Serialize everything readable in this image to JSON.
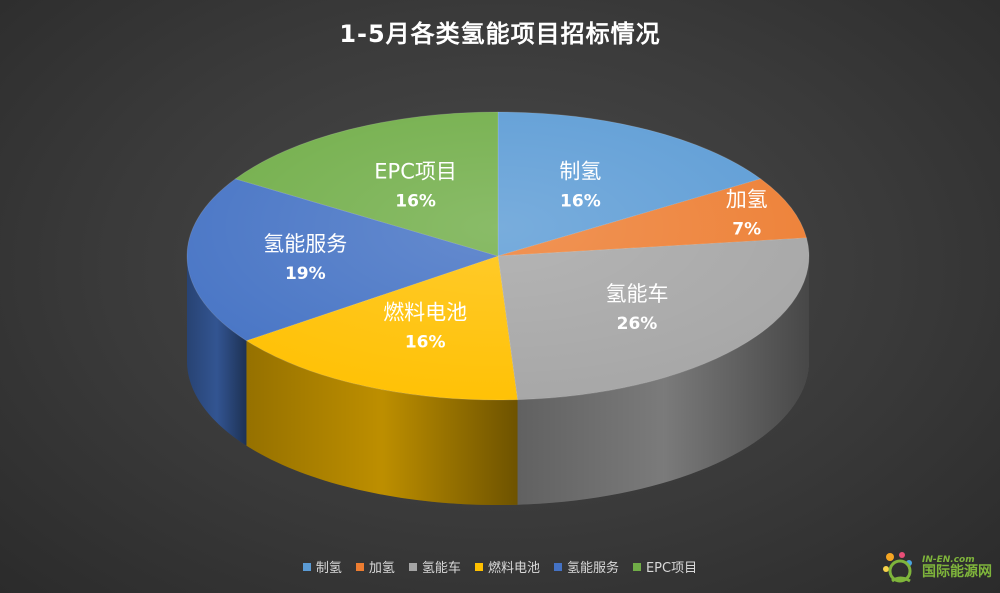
{
  "chart_data": {
    "type": "pie",
    "title": "1-5月各类氢能项目招标情况",
    "categories": [
      "制氢",
      "加氢",
      "氢能车",
      "燃料电池",
      "氢能服务",
      "EPC项目"
    ],
    "values": [
      16,
      7,
      26,
      16,
      19,
      16
    ],
    "value_labels": [
      "16%",
      "7%",
      "26%",
      "16%",
      "19%",
      "16%"
    ],
    "colors": [
      "#5b9bd5",
      "#ed7d31",
      "#a5a5a5",
      "#ffc000",
      "#4472c4",
      "#70ad47"
    ],
    "legend_position": "bottom"
  },
  "watermark": {
    "en": "IN-EN.com",
    "cn": "国际能源网"
  }
}
